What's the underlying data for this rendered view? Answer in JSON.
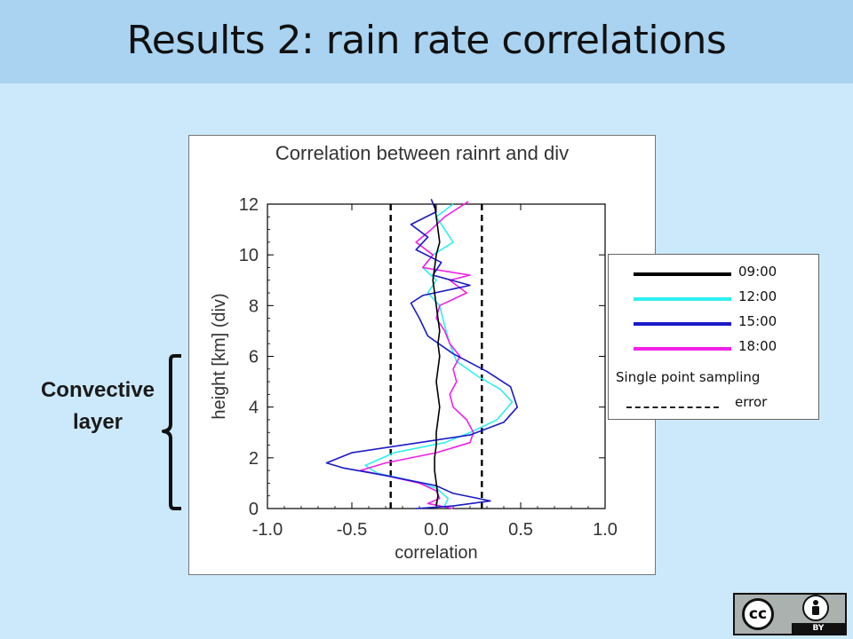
{
  "slide": {
    "title": "Results 2: rain rate correlations"
  },
  "annotation": {
    "line1": "Convective",
    "line2": "layer"
  },
  "legend": {
    "entries": [
      {
        "label": "09:00",
        "color": "#000000"
      },
      {
        "label": "12:00",
        "color": "#2ef0ee"
      },
      {
        "label": "15:00",
        "color": "#1a1ac8"
      },
      {
        "label": "18:00",
        "color": "#f020e8"
      }
    ],
    "sampling_label": "Single point sampling",
    "error_label": "error"
  },
  "license": {
    "cc_text": "cc",
    "by_text": "BY",
    "person_icon": "person-icon"
  },
  "chart_data": {
    "type": "line",
    "title": "Correlation between rainrt and div",
    "xlabel": "correlation",
    "ylabel": "height [km] (div)",
    "xlim": [
      -1.0,
      1.0
    ],
    "ylim": [
      0,
      12
    ],
    "xticks": [
      "-1.0",
      "-0.5",
      "0.0",
      "0.5",
      "1.0"
    ],
    "yticks": [
      "0",
      "2",
      "4",
      "6",
      "8",
      "10",
      "12"
    ],
    "sampling_error": [
      -0.27,
      0.27
    ],
    "series": [
      {
        "name": "09:00",
        "color": "#000000",
        "points": [
          [
            0.0,
            0.1
          ],
          [
            0.01,
            0.5
          ],
          [
            0.0,
            1.0
          ],
          [
            -0.01,
            1.5
          ],
          [
            -0.01,
            2.0
          ],
          [
            0.0,
            2.5
          ],
          [
            0.0,
            3.0
          ],
          [
            0.01,
            3.5
          ],
          [
            0.02,
            4.0
          ],
          [
            0.01,
            4.5
          ],
          [
            0.0,
            5.0
          ],
          [
            0.01,
            5.5
          ],
          [
            0.02,
            6.0
          ],
          [
            0.01,
            6.5
          ],
          [
            0.02,
            7.0
          ],
          [
            0.01,
            7.5
          ],
          [
            0.0,
            8.0
          ],
          [
            -0.01,
            8.5
          ],
          [
            -0.02,
            9.0
          ],
          [
            -0.01,
            9.5
          ],
          [
            0.0,
            10.0
          ],
          [
            0.02,
            10.5
          ],
          [
            0.01,
            11.0
          ],
          [
            0.0,
            11.5
          ],
          [
            -0.01,
            12.0
          ]
        ]
      },
      {
        "name": "12:00",
        "color": "#2ef0ee",
        "points": [
          [
            0.05,
            0.1
          ],
          [
            0.07,
            0.4
          ],
          [
            0.0,
            0.8
          ],
          [
            -0.15,
            1.1
          ],
          [
            -0.35,
            1.4
          ],
          [
            -0.42,
            1.7
          ],
          [
            -0.25,
            2.2
          ],
          [
            0.05,
            2.6
          ],
          [
            0.2,
            3.0
          ],
          [
            0.36,
            3.5
          ],
          [
            0.45,
            4.2
          ],
          [
            0.38,
            4.7
          ],
          [
            0.25,
            5.2
          ],
          [
            0.12,
            5.8
          ],
          [
            0.08,
            6.5
          ],
          [
            0.05,
            7.2
          ],
          [
            0.02,
            8.0
          ],
          [
            -0.05,
            8.5
          ],
          [
            0.0,
            9.0
          ],
          [
            -0.08,
            9.5
          ],
          [
            -0.02,
            10.0
          ],
          [
            0.1,
            10.5
          ],
          [
            0.05,
            11.0
          ],
          [
            0.0,
            11.5
          ],
          [
            0.1,
            12.0
          ]
        ]
      },
      {
        "name": "15:00",
        "color": "#1a1ac8",
        "points": [
          [
            -0.12,
            0.0
          ],
          [
            0.1,
            0.1
          ],
          [
            0.32,
            0.3
          ],
          [
            0.1,
            0.6
          ],
          [
            0.0,
            0.9
          ],
          [
            -0.3,
            1.3
          ],
          [
            -0.55,
            1.6
          ],
          [
            -0.65,
            1.8
          ],
          [
            -0.5,
            2.2
          ],
          [
            -0.1,
            2.6
          ],
          [
            0.2,
            2.9
          ],
          [
            0.4,
            3.4
          ],
          [
            0.48,
            4.0
          ],
          [
            0.44,
            4.8
          ],
          [
            0.3,
            5.4
          ],
          [
            0.1,
            6.1
          ],
          [
            -0.05,
            6.8
          ],
          [
            -0.1,
            7.5
          ],
          [
            -0.15,
            8.1
          ],
          [
            -0.08,
            8.4
          ],
          [
            0.2,
            8.8
          ],
          [
            -0.02,
            9.2
          ],
          [
            0.03,
            9.7
          ],
          [
            -0.12,
            10.2
          ],
          [
            -0.05,
            10.7
          ],
          [
            -0.15,
            11.2
          ],
          [
            0.0,
            11.7
          ],
          [
            -0.03,
            12.2
          ]
        ]
      },
      {
        "name": "18:00",
        "color": "#f020e8",
        "points": [
          [
            0.1,
            0.0
          ],
          [
            -0.05,
            0.2
          ],
          [
            0.02,
            0.4
          ],
          [
            0.0,
            0.7
          ],
          [
            -0.1,
            1.0
          ],
          [
            -0.3,
            1.3
          ],
          [
            -0.45,
            1.5
          ],
          [
            -0.3,
            1.8
          ],
          [
            0.0,
            2.2
          ],
          [
            0.2,
            2.6
          ],
          [
            0.22,
            3.0
          ],
          [
            0.18,
            3.5
          ],
          [
            0.1,
            4.0
          ],
          [
            0.08,
            4.5
          ],
          [
            0.12,
            5.0
          ],
          [
            0.1,
            5.5
          ],
          [
            0.14,
            6.0
          ],
          [
            0.08,
            6.5
          ],
          [
            0.05,
            7.0
          ],
          [
            0.0,
            7.5
          ],
          [
            0.02,
            8.0
          ],
          [
            0.18,
            8.5
          ],
          [
            0.08,
            9.0
          ],
          [
            0.2,
            9.2
          ],
          [
            -0.08,
            9.5
          ],
          [
            -0.02,
            10.0
          ],
          [
            -0.12,
            10.5
          ],
          [
            -0.03,
            11.0
          ],
          [
            0.05,
            11.5
          ],
          [
            0.19,
            12.1
          ]
        ]
      }
    ]
  }
}
